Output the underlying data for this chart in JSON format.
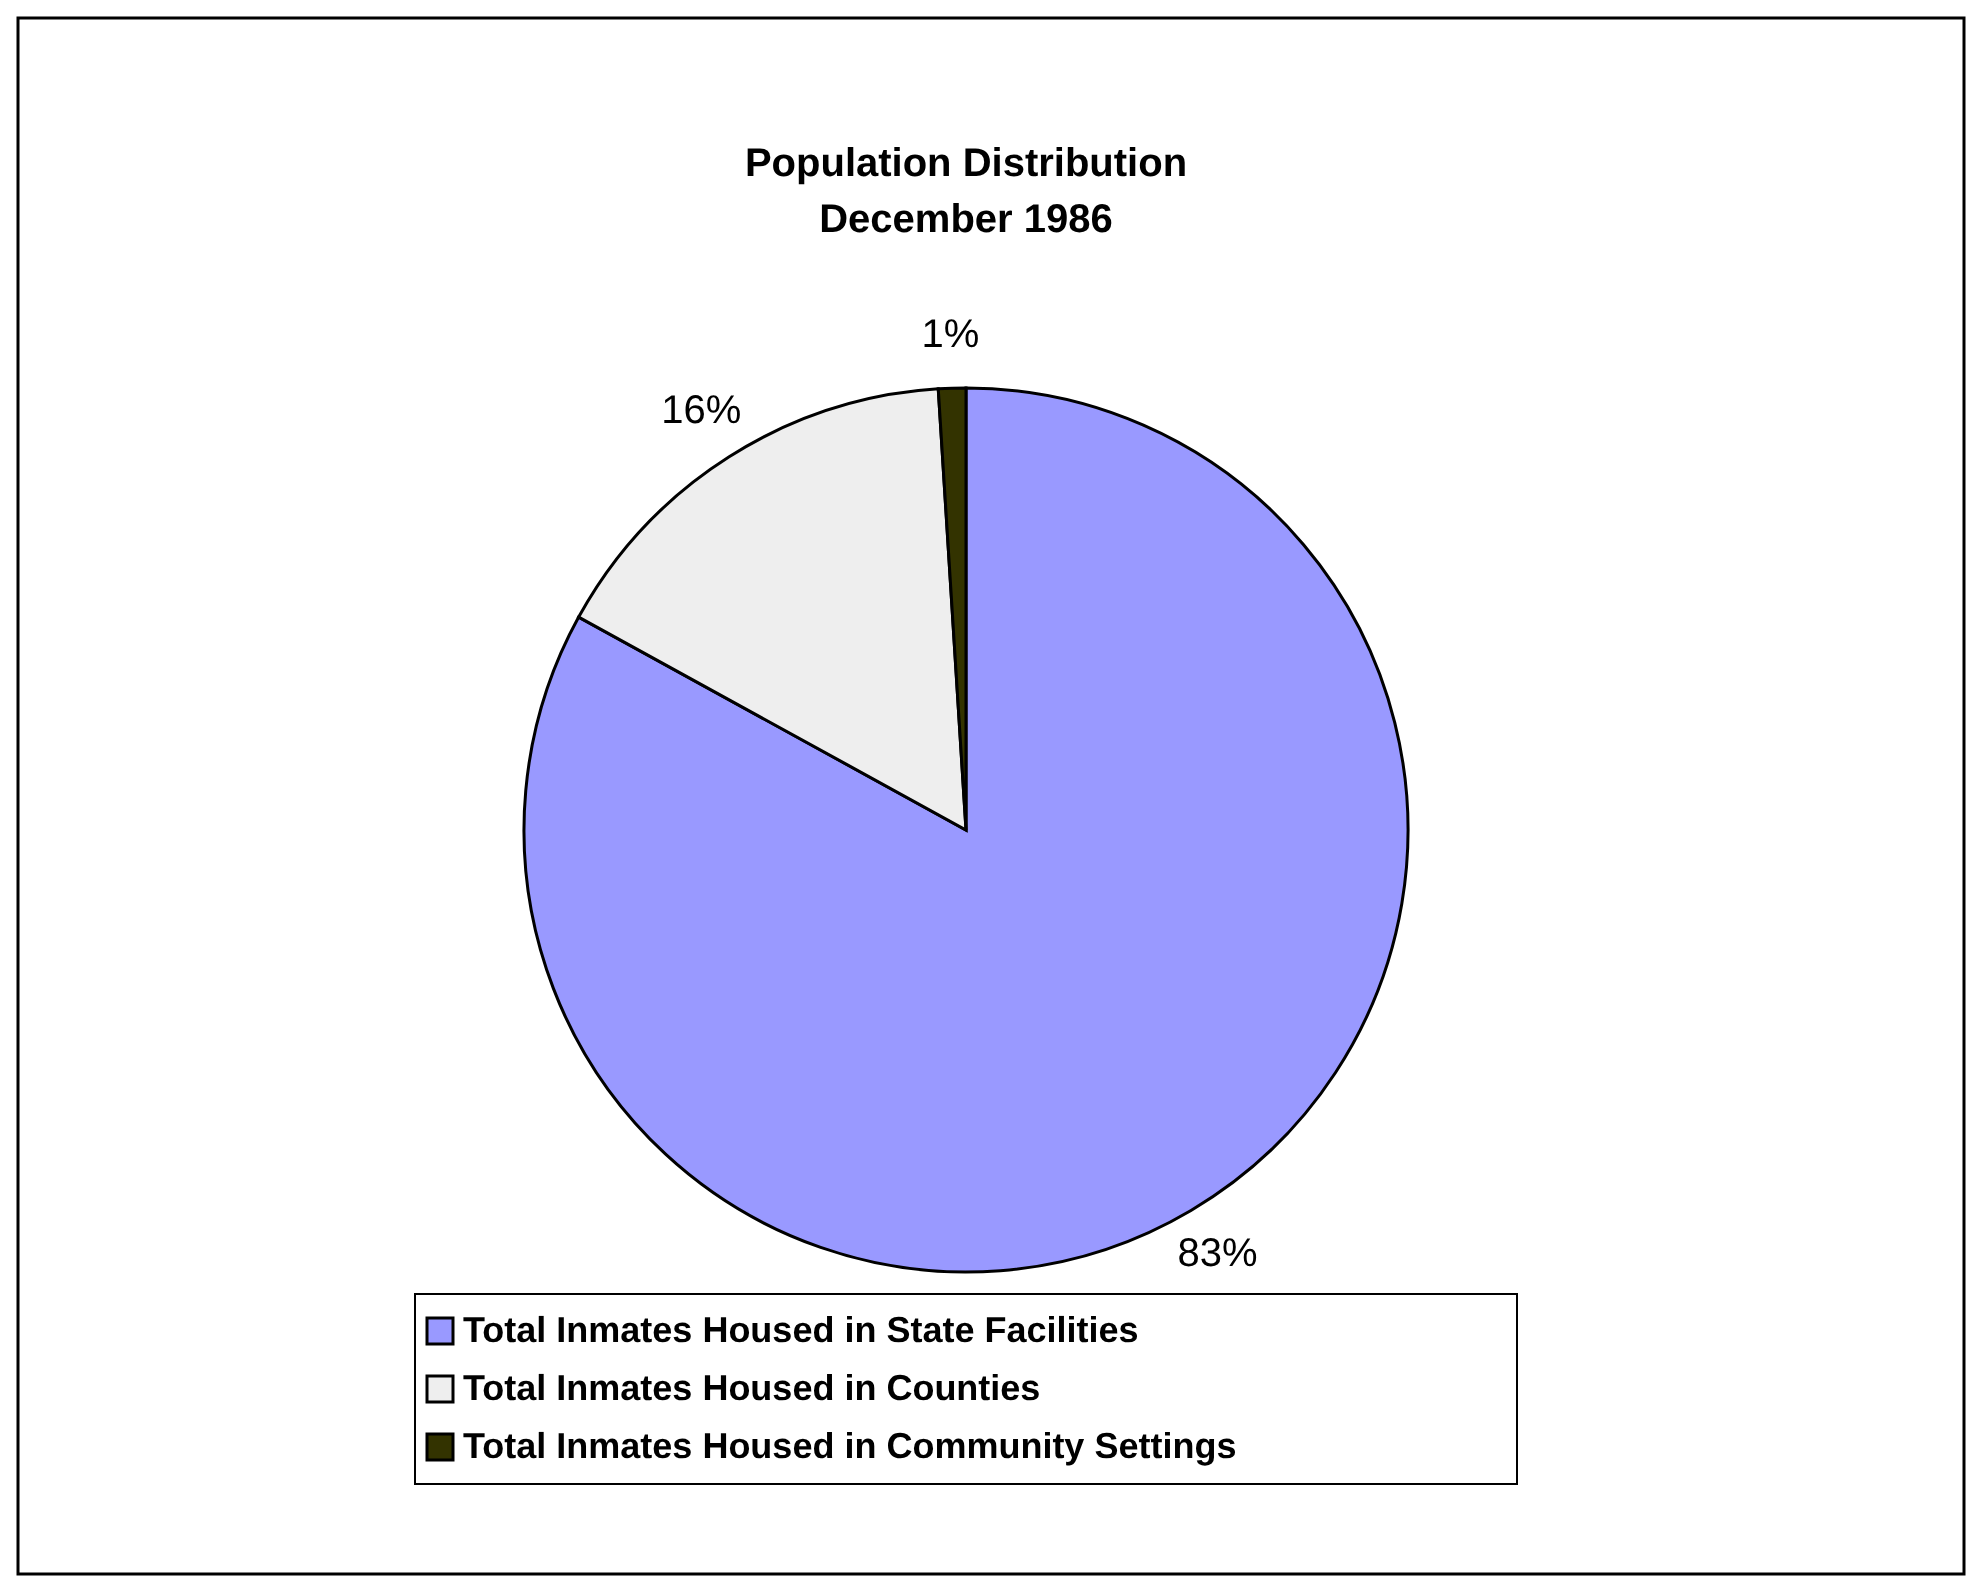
{
  "chart_data": {
    "type": "pie",
    "title": "Population Distribution\nDecember 1986",
    "categories": [
      "Total Inmates Housed in State Facilities",
      "Total Inmates Housed in Counties",
      "Total Inmates Housed in Community Settings"
    ],
    "values": [
      83,
      16,
      1
    ],
    "colors": [
      "#9999ff",
      "#eeeeee",
      "#333300"
    ],
    "value_labels": [
      "83%",
      "16%",
      "1%"
    ],
    "legend": "bottom"
  }
}
